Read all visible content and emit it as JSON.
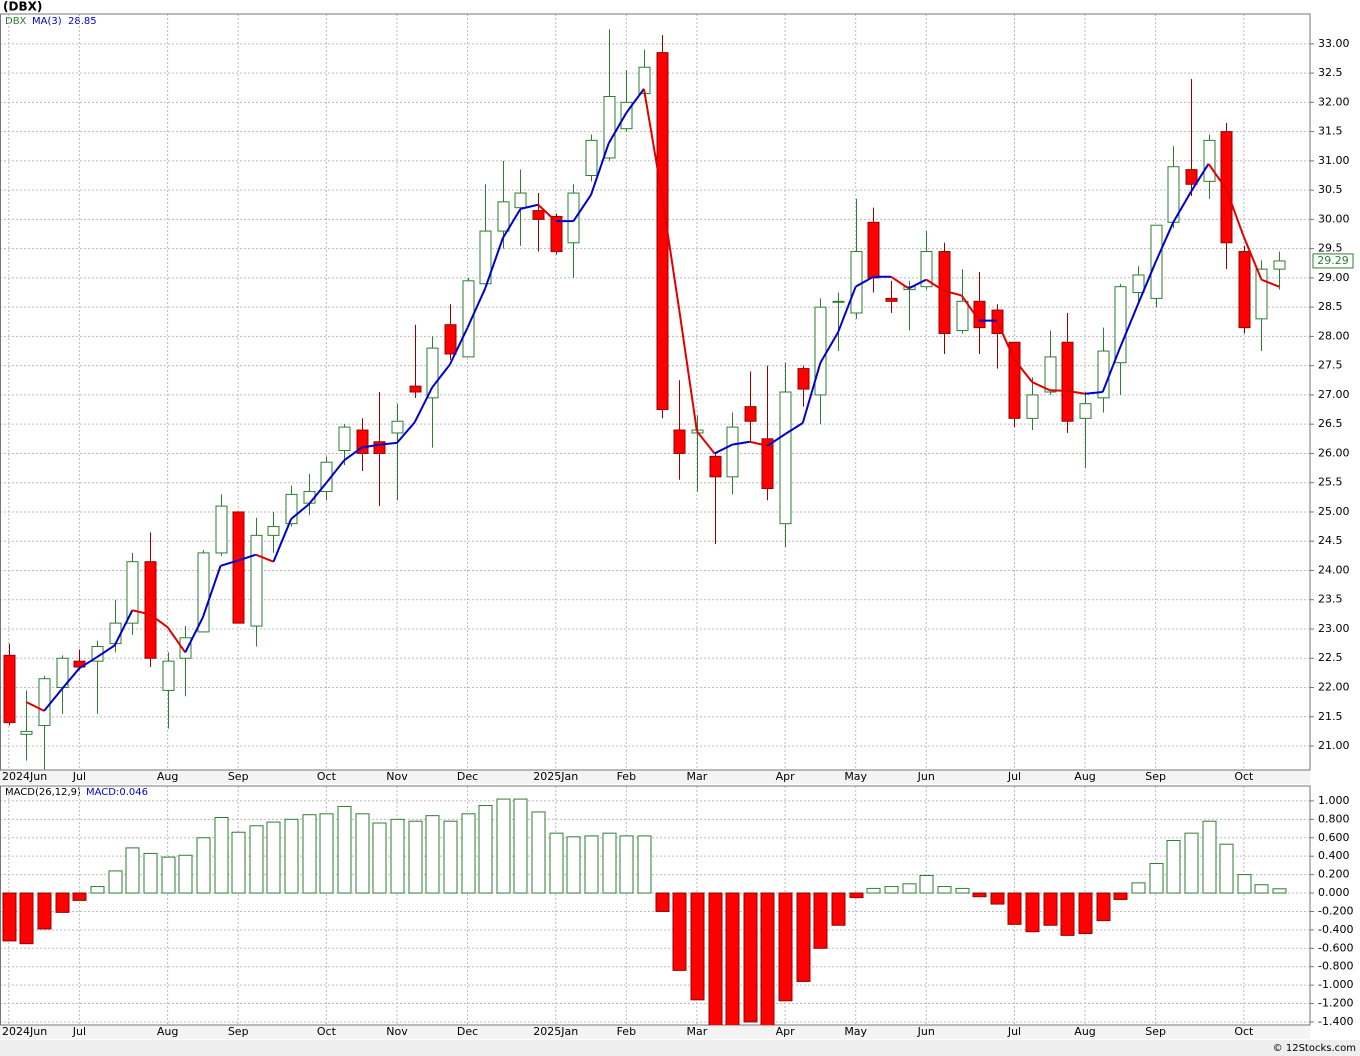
{
  "chart_data": [
    {
      "type": "candlestick",
      "title": "(DBX)",
      "series_label": "DBX",
      "grid": true,
      "up_color": "#2e7d32",
      "down_color": "#ff0000",
      "xlim": [
        -0.5,
        73.75
      ],
      "xticks": [
        {
          "value": 0,
          "label": "2024Jun"
        },
        {
          "value": 4,
          "label": "Jul"
        },
        {
          "value": 9,
          "label": "Aug"
        },
        {
          "value": 13,
          "label": "Sep"
        },
        {
          "value": 18,
          "label": "Oct"
        },
        {
          "value": 22,
          "label": "Nov"
        },
        {
          "value": 26,
          "label": "Dec"
        },
        {
          "value": 31,
          "label": "2025Jan"
        },
        {
          "value": 35,
          "label": "Feb"
        },
        {
          "value": 39,
          "label": "Mar"
        },
        {
          "value": 44,
          "label": "Apr"
        },
        {
          "value": 48,
          "label": "May"
        },
        {
          "value": 52,
          "label": "Jun"
        },
        {
          "value": 57,
          "label": "Jul"
        },
        {
          "value": 61,
          "label": "Aug"
        },
        {
          "value": 65,
          "label": "Sep"
        },
        {
          "value": 70,
          "label": "Oct"
        }
      ],
      "ylim": [
        20.59,
        33.51
      ],
      "yticks": [
        {
          "value": 21,
          "label": "21.00"
        },
        21.5,
        {
          "value": 22,
          "label": "22.00"
        },
        22.5,
        {
          "value": 23,
          "label": "23.00"
        },
        23.5,
        {
          "value": 24,
          "label": "24.00"
        },
        24.5,
        {
          "value": 25,
          "label": "25.00"
        },
        25.5,
        {
          "value": 26,
          "label": "26.00"
        },
        26.5,
        {
          "value": 27,
          "label": "27.00"
        },
        27.5,
        {
          "value": 28,
          "label": "28.00"
        },
        28.5,
        {
          "value": 29,
          "label": "29.00"
        },
        29.5,
        {
          "value": 30,
          "label": "30.00"
        },
        30.5,
        {
          "value": 31,
          "label": "31.00"
        },
        31.5,
        {
          "value": 32,
          "label": "32.00"
        },
        32.5,
        {
          "value": 33,
          "label": "33.00"
        }
      ],
      "open": [
        22.55,
        21.2,
        21.35,
        22.0,
        22.45,
        22.45,
        22.75,
        23.1,
        24.15,
        21.95,
        22.5,
        22.95,
        24.3,
        25.0,
        23.05,
        24.6,
        24.8,
        25.15,
        25.35,
        26.05,
        26.4,
        26.2,
        26.35,
        27.15,
        26.95,
        28.2,
        27.65,
        28.9,
        29.8,
        30.2,
        30.15,
        30.05,
        29.6,
        30.75,
        31.05,
        31.55,
        32.15,
        32.85,
        26.4,
        26.35,
        25.95,
        25.6,
        26.8,
        26.25,
        24.8,
        27.45,
        27.0,
        28.6,
        28.4,
        29.95,
        28.65,
        28.8,
        28.85,
        29.45,
        28.1,
        28.6,
        28.45,
        27.9,
        26.6,
        27.05,
        27.9,
        26.6,
        26.95,
        27.55,
        28.75,
        28.65,
        29.95,
        30.85,
        30.65,
        31.5,
        29.45,
        28.3,
        29.15
      ],
      "high": [
        22.75,
        21.95,
        22.2,
        22.55,
        22.65,
        22.8,
        23.5,
        24.3,
        24.65,
        22.6,
        23.05,
        24.35,
        25.3,
        25.0,
        24.9,
        25.0,
        25.45,
        25.65,
        25.95,
        26.5,
        26.6,
        27.05,
        26.85,
        28.2,
        28.0,
        28.55,
        29.0,
        30.6,
        31.0,
        30.85,
        30.45,
        30.1,
        30.6,
        31.45,
        33.25,
        32.55,
        32.9,
        33.15,
        27.25,
        26.65,
        26.0,
        26.7,
        27.4,
        27.5,
        27.55,
        27.5,
        28.65,
        28.75,
        30.35,
        30.2,
        28.95,
        28.95,
        29.8,
        29.6,
        29.15,
        29.1,
        28.55,
        27.9,
        27.3,
        28.1,
        28.4,
        27.05,
        28.15,
        28.9,
        29.2,
        29.9,
        31.25,
        32.4,
        31.45,
        31.65,
        29.55,
        29.3,
        29.45
      ],
      "low": [
        21.35,
        20.75,
        20.6,
        21.55,
        22.3,
        21.55,
        22.6,
        22.9,
        22.35,
        21.3,
        21.85,
        22.95,
        24.25,
        23.1,
        22.7,
        24.3,
        24.75,
        24.95,
        25.2,
        25.8,
        25.7,
        25.1,
        25.2,
        26.95,
        26.1,
        27.6,
        27.65,
        28.9,
        29.5,
        29.55,
        29.45,
        29.4,
        29.0,
        30.65,
        31.0,
        31.5,
        32.1,
        26.6,
        25.55,
        25.35,
        24.45,
        25.3,
        26.2,
        25.2,
        24.4,
        26.8,
        26.5,
        27.75,
        28.3,
        28.75,
        28.4,
        28.1,
        28.8,
        27.7,
        28.05,
        27.7,
        27.45,
        26.45,
        26.4,
        27.0,
        26.35,
        25.75,
        26.7,
        27.0,
        28.55,
        28.5,
        29.85,
        30.4,
        30.35,
        29.15,
        28.05,
        27.75,
        28.8
      ],
      "close": [
        21.4,
        21.25,
        22.15,
        22.5,
        22.35,
        22.7,
        23.1,
        24.15,
        22.5,
        22.45,
        22.85,
        24.3,
        25.1,
        23.1,
        24.6,
        24.75,
        25.3,
        25.35,
        25.85,
        26.45,
        26.0,
        26.0,
        26.55,
        27.05,
        27.8,
        27.7,
        28.95,
        29.8,
        30.3,
        30.45,
        30.0,
        29.45,
        30.45,
        31.35,
        32.1,
        32.0,
        32.6,
        26.75,
        26.0,
        26.4,
        25.6,
        26.45,
        26.55,
        25.4,
        27.05,
        27.1,
        28.5,
        28.6,
        29.45,
        29.0,
        28.6,
        28.85,
        29.45,
        28.05,
        28.6,
        28.15,
        28.05,
        26.6,
        27.0,
        27.65,
        26.55,
        26.85,
        27.75,
        28.85,
        29.05,
        29.9,
        30.9,
        30.6,
        31.35,
        29.6,
        28.15,
        29.15,
        29.29
      ],
      "last_value_label": "29.29",
      "ma": {
        "name": "MA(3)",
        "value_label": "28.85",
        "up_color": "#0000cc",
        "down_color": "#e00000",
        "values": [
          null,
          21.75,
          21.6,
          21.97,
          22.33,
          22.52,
          22.72,
          23.32,
          23.25,
          23.03,
          22.6,
          23.2,
          24.08,
          24.17,
          24.27,
          24.15,
          24.88,
          25.13,
          25.5,
          25.88,
          26.1,
          26.15,
          26.18,
          26.53,
          27.13,
          27.52,
          28.15,
          28.82,
          29.68,
          30.18,
          30.25,
          29.97,
          29.97,
          30.42,
          31.3,
          31.82,
          32.23,
          30.45,
          28.45,
          26.38,
          26.0,
          26.15,
          26.2,
          26.13,
          26.33,
          26.52,
          27.55,
          28.07,
          28.85,
          29.02,
          29.02,
          28.82,
          28.97,
          28.78,
          28.7,
          28.27,
          28.27,
          27.6,
          27.22,
          27.08,
          27.07,
          27.02,
          27.05,
          27.82,
          28.55,
          29.27,
          29.95,
          30.47,
          30.95,
          30.52,
          29.7,
          28.97,
          28.85
        ]
      }
    },
    {
      "type": "bar",
      "legend_label": "MACD(26,12,9)",
      "last_value_label": "MACD:0.046",
      "grid": true,
      "positive_color": "#2e7d32",
      "negative_color": "#ff0000",
      "xlim": [
        -0.5,
        73.75
      ],
      "xticks": [
        {
          "value": 0,
          "label": "2024Jun"
        },
        {
          "value": 4,
          "label": "Jul"
        },
        {
          "value": 9,
          "label": "Aug"
        },
        {
          "value": 13,
          "label": "Sep"
        },
        {
          "value": 18,
          "label": "Oct"
        },
        {
          "value": 22,
          "label": "Nov"
        },
        {
          "value": 26,
          "label": "Dec"
        },
        {
          "value": 31,
          "label": "2025Jan"
        },
        {
          "value": 35,
          "label": "Feb"
        },
        {
          "value": 39,
          "label": "Mar"
        },
        {
          "value": 44,
          "label": "Apr"
        },
        {
          "value": 48,
          "label": "May"
        },
        {
          "value": 52,
          "label": "Jun"
        },
        {
          "value": 57,
          "label": "Jul"
        },
        {
          "value": 61,
          "label": "Aug"
        },
        {
          "value": 65,
          "label": "Sep"
        },
        {
          "value": 70,
          "label": "Oct"
        }
      ],
      "ylim": [
        -1.433,
        1.162
      ],
      "yticks": [
        {
          "value": 1,
          "label": "1.000"
        },
        {
          "value": 0.8,
          "label": "0.800"
        },
        {
          "value": 0.6,
          "label": "0.600"
        },
        {
          "value": 0.4,
          "label": "0.400"
        },
        {
          "value": 0.2,
          "label": "0.200"
        },
        {
          "value": 0,
          "label": "0.000"
        },
        {
          "value": -0.2,
          "label": "-0.200"
        },
        {
          "value": -0.4,
          "label": "-0.400"
        },
        {
          "value": -0.6,
          "label": "-0.600"
        },
        {
          "value": -0.8,
          "label": "-0.800"
        },
        {
          "value": -1,
          "label": "-1.000"
        },
        {
          "value": -1.2,
          "label": "-1.200"
        },
        {
          "value": -1.4,
          "label": "-1.400"
        }
      ],
      "values": [
        -0.52,
        -0.55,
        -0.39,
        -0.21,
        -0.08,
        0.07,
        0.24,
        0.49,
        0.43,
        0.39,
        0.41,
        0.6,
        0.82,
        0.66,
        0.73,
        0.77,
        0.8,
        0.85,
        0.86,
        0.94,
        0.86,
        0.76,
        0.8,
        0.78,
        0.84,
        0.78,
        0.86,
        0.95,
        1.02,
        1.02,
        0.88,
        0.65,
        0.61,
        0.62,
        0.65,
        0.62,
        0.62,
        -0.2,
        -0.84,
        -1.16,
        -1.45,
        -1.45,
        -1.4,
        -1.44,
        -1.17,
        -0.96,
        -0.6,
        -0.35,
        -0.05,
        0.05,
        0.07,
        0.1,
        0.19,
        0.07,
        0.05,
        -0.04,
        -0.12,
        -0.34,
        -0.42,
        -0.35,
        -0.46,
        -0.44,
        -0.3,
        -0.07,
        0.11,
        0.32,
        0.57,
        0.65,
        0.78,
        0.53,
        0.2,
        0.09,
        0.046
      ]
    }
  ],
  "footer": "© 12Stocks.com"
}
